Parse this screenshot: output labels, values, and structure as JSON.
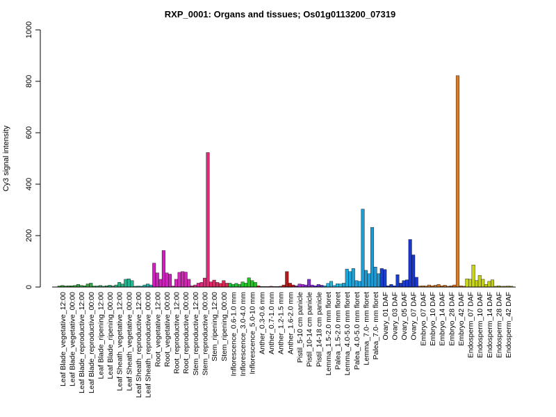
{
  "chart_data": {
    "type": "bar",
    "title": "RXP_0001: Organs and tissues; Os01g0113200_07319",
    "ylabel": "Cy3 signal intensity",
    "xlabel": "",
    "ylim": [
      0,
      1000
    ],
    "yticks": [
      0,
      200,
      400,
      600,
      800,
      1000
    ],
    "grid": false,
    "legend": "none",
    "labels": [
      "Leaf Blade_vegetative_12:00",
      "Leaf Blade_vegetative_00:00",
      "Leaf Blade_reproductive_12:00",
      "Leaf Blade_reproductive_00:00",
      "Leaf Blade_ripening_12:00",
      "Leaf Blade_ripening_00:00",
      "Leaf Sheath_vegetative_12:00",
      "Leaf Sheath_vegetative_00:00",
      "Leaf Sheath_reproductive_12:00",
      "Leaf Sheath_reproductive_00:00",
      "Root_vegetative_12:00",
      "Root_vegetative_00:00",
      "Root_reproductive_12:00",
      "Root_reproductive_00:00",
      "Stem_reproductive_12:00",
      "Stem_reproductive_00:00",
      "Stem_ripening_12:00",
      "Stem_ripening_00:00",
      "Inflorescence_0.6-1.0 mm",
      "Inflorescence_3.0-4.0 mm",
      "Inflorescence_5.0-10 mm",
      "Anther_0.3-0.6 mm",
      "Anther_0.7-1.0 mm",
      "Anther_1.2-1.5 mm",
      "Anther_1.6-2.0 mm",
      "Pistil_5-10 cm panicle",
      "Pistil_10-14 cm panicle",
      "Pistil_14-18 cm panicle",
      "Lemma_1.5-2.0 mm floret",
      "Palea_1.5-2.0 mm floret",
      "Lemma_4.0-5.0 mm floret",
      "Palea_4.0-5.0 mm floret",
      "Lemma_7.0- mm floret",
      "Palea_7.0- mm floret",
      "Ovary_01 DAF",
      "Ovary_03 DAF",
      "Ovary_05 DAF",
      "Ovary_07 DAF",
      "Embryo_07 DAF",
      "Embryo_10 DAF",
      "Embryo_14 DAF",
      "Embryo_28 DAF",
      "Embryo_42 DAF",
      "Endosperm_07 DAF",
      "Endosperm_10 DAF",
      "Endosperm_14 DAF",
      "Endosperm_28 DAF",
      "Endosperm_42 DAF"
    ],
    "groups": [
      {
        "color": "#2c9e2c",
        "values": [
          4,
          6,
          4
        ]
      },
      {
        "color": "#2e9f35",
        "values": [
          5,
          5,
          6
        ]
      },
      {
        "color": "#33a33d",
        "values": [
          10,
          6,
          5
        ]
      },
      {
        "color": "#38a846",
        "values": [
          12,
          15,
          4
        ]
      },
      {
        "color": "#2fa65a",
        "values": [
          4,
          6,
          3
        ]
      },
      {
        "color": "#2aa86b",
        "values": [
          5,
          7,
          4
        ]
      },
      {
        "color": "#2ab37f",
        "values": [
          8,
          18,
          12
        ]
      },
      {
        "color": "#22b690",
        "values": [
          30,
          32,
          25
        ]
      },
      {
        "color": "#20b39b",
        "values": [
          3,
          4,
          3
        ]
      },
      {
        "color": "#1fb0a4",
        "values": [
          8,
          12,
          8
        ]
      },
      {
        "color": "#cc22bb",
        "values": [
          93,
          55,
          30
        ]
      },
      {
        "color": "#cc22bb",
        "values": [
          142,
          55,
          50
        ]
      },
      {
        "color": "#d02ab8",
        "values": [
          4,
          30,
          57
        ]
      },
      {
        "color": "#cf2ab3",
        "values": [
          60,
          58,
          30
        ]
      },
      {
        "color": "#d92c8d",
        "values": [
          5,
          8,
          15
        ]
      },
      {
        "color": "#db2a78",
        "values": [
          18,
          35,
          523
        ]
      },
      {
        "color": "#db2a62",
        "values": [
          20,
          27,
          18
        ]
      },
      {
        "color": "#db2a55",
        "values": [
          14,
          25,
          15
        ]
      },
      {
        "color": "#22c040",
        "values": [
          15,
          10,
          14
        ]
      },
      {
        "color": "#22c52a",
        "values": [
          10,
          20,
          15
        ]
      },
      {
        "color": "#26c422",
        "values": [
          36,
          25,
          18
        ]
      },
      {
        "color": "#d02828",
        "values": [
          5,
          2,
          2
        ]
      },
      {
        "color": "#c82222",
        "values": [
          2,
          3,
          2
        ]
      },
      {
        "color": "#c02020",
        "values": [
          2,
          3,
          8
        ]
      },
      {
        "color": "#b81818",
        "values": [
          60,
          15,
          8
        ]
      },
      {
        "color": "#a22ed4",
        "values": [
          5,
          12,
          10
        ]
      },
      {
        "color": "#8a2ad6",
        "values": [
          8,
          30,
          8
        ]
      },
      {
        "color": "#6b2ed8",
        "values": [
          5,
          10,
          7
        ]
      },
      {
        "color": "#26b6e0",
        "values": [
          5,
          14,
          22
        ]
      },
      {
        "color": "#28bae0",
        "values": [
          6,
          13,
          12
        ]
      },
      {
        "color": "#1aa7dc",
        "values": [
          15,
          70,
          60
        ]
      },
      {
        "color": "#20a2d8",
        "values": [
          72,
          25,
          22
        ]
      },
      {
        "color": "#1e9bd2",
        "values": [
          303,
          65,
          52
        ]
      },
      {
        "color": "#2098d0",
        "values": [
          232,
          78,
          52
        ]
      },
      {
        "color": "#1a40cc",
        "values": [
          72,
          68,
          5
        ]
      },
      {
        "color": "#1a3ccb",
        "values": [
          10,
          5,
          48
        ]
      },
      {
        "color": "#1c3acc",
        "values": [
          15,
          25,
          28
        ]
      },
      {
        "color": "#1a36cc",
        "values": [
          185,
          125,
          38
        ]
      },
      {
        "color": "#e07a22",
        "values": [
          4,
          5,
          4
        ]
      },
      {
        "color": "#e07a22",
        "values": [
          8,
          5,
          7
        ]
      },
      {
        "color": "#dc7420",
        "values": [
          10,
          5,
          7
        ]
      },
      {
        "color": "#d8701e",
        "values": [
          3,
          5,
          8
        ]
      },
      {
        "color": "#e07a22",
        "values": [
          822,
          5,
          3
        ]
      },
      {
        "color": "#c8d418",
        "values": [
          32,
          30,
          86
        ]
      },
      {
        "color": "#c4d016",
        "values": [
          25,
          45,
          30
        ]
      },
      {
        "color": "#c0cc16",
        "values": [
          10,
          22,
          28
        ]
      },
      {
        "color": "#b8c014",
        "values": [
          3,
          5,
          3
        ]
      },
      {
        "color": "#b0b812",
        "values": [
          3,
          4,
          3
        ]
      }
    ]
  }
}
